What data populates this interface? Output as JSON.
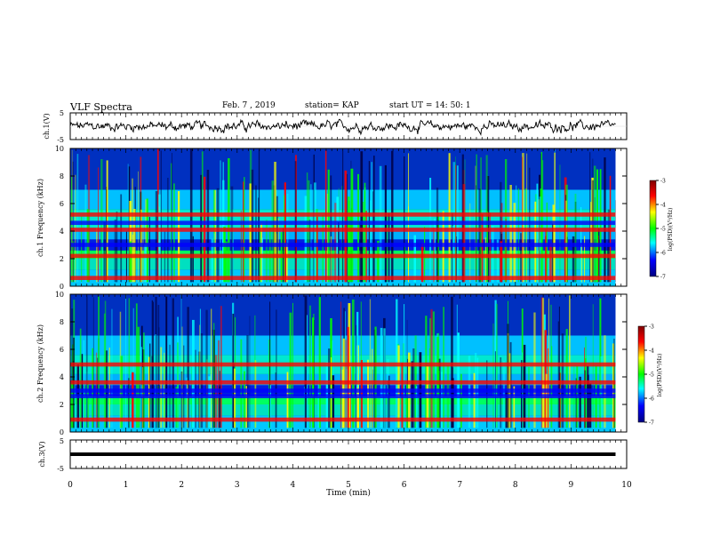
{
  "header": {
    "title": "VLF Spectra",
    "date": "Feb. 7 , 2019",
    "station": "station= KAP",
    "start": "start UT = 14: 50: 1"
  },
  "chart_data": [
    {
      "type": "line",
      "ylabel": "ch.1(V)",
      "ylim": [
        -5,
        5
      ],
      "yticks": [
        "5",
        "-5"
      ],
      "xlim": [
        0,
        10
      ],
      "notes": "noisy waveform roughly between -2 and 2 V over 0 to 9.8 min"
    },
    {
      "type": "heatmap",
      "ylabel": "ch.1 Frequency (kHz)",
      "ylim": [
        0,
        10
      ],
      "yticks": [
        "0",
        "2",
        "4",
        "6",
        "8",
        "10"
      ],
      "xlim": [
        0,
        10
      ],
      "colorbar": {
        "label": "log(PSD)(V²/Hz)",
        "range": [
          -7,
          -3
        ],
        "ticks": [
          "-3",
          "-4",
          "-5",
          "-6",
          "-7"
        ]
      },
      "bands": [
        {
          "f": 0.6,
          "level": "high"
        },
        {
          "f": 2.2,
          "level": "high"
        },
        {
          "f": 4.1,
          "level": "high"
        },
        {
          "f": 5.2,
          "level": "high"
        },
        {
          "f": 3.0,
          "level": "low"
        },
        {
          "f": 4.6,
          "level": "low"
        }
      ]
    },
    {
      "type": "heatmap",
      "ylabel": "ch.2 Frequency (kHz)",
      "ylim": [
        0,
        10
      ],
      "yticks": [
        "0",
        "2",
        "4",
        "6",
        "8",
        "10"
      ],
      "xlim": [
        0,
        10
      ],
      "colorbar": {
        "label": "log(PSD)(V²/Hz)",
        "range": [
          -7,
          -3
        ],
        "ticks": [
          "-3",
          "-4",
          "-5",
          "-6",
          "-7"
        ]
      },
      "bands": [
        {
          "f": 0.9,
          "level": "high"
        },
        {
          "f": 3.6,
          "level": "high"
        },
        {
          "f": 4.9,
          "level": "high"
        },
        {
          "f": 2.6,
          "level": "low"
        },
        {
          "f": 3.0,
          "level": "low"
        }
      ]
    },
    {
      "type": "line",
      "ylabel": "ch.3(V)",
      "ylim": [
        -5,
        5
      ],
      "yticks": [
        "5",
        "-5"
      ],
      "xlim": [
        0,
        10
      ],
      "x": [
        0,
        9.8
      ],
      "y": [
        0,
        0
      ]
    }
  ],
  "xaxis": {
    "label": "Time (min)",
    "ticks": [
      "0",
      "1",
      "2",
      "3",
      "4",
      "5",
      "6",
      "7",
      "8",
      "9",
      "10"
    ]
  },
  "colors": {
    "colormap": [
      "#000080",
      "#0000ff",
      "#00ffff",
      "#00ff00",
      "#ffff00",
      "#ff0000",
      "#800000"
    ],
    "trace": "#000000"
  }
}
